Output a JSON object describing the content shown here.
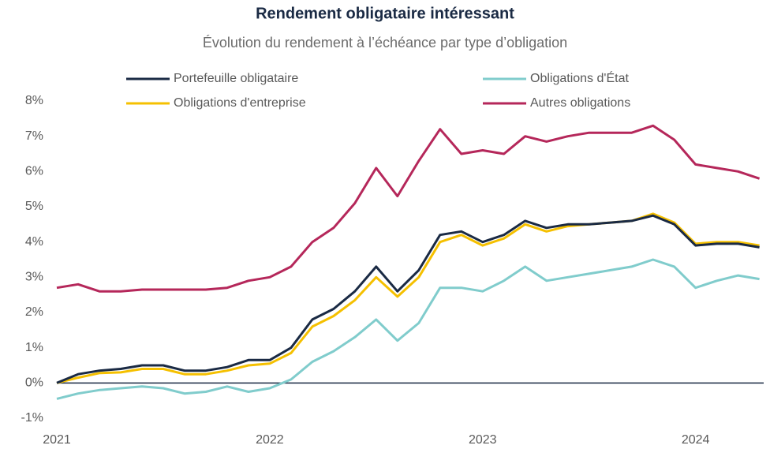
{
  "chart_data": {
    "type": "line",
    "title": "Rendement obligataire intéressant",
    "subtitle": "Évolution du rendement à l’échéance par type d’obligation",
    "x": [
      2021.0,
      2021.1,
      2021.2,
      2021.3,
      2021.4,
      2021.5,
      2021.6,
      2021.7,
      2021.8,
      2021.9,
      2022.0,
      2022.1,
      2022.2,
      2022.3,
      2022.4,
      2022.5,
      2022.6,
      2022.7,
      2022.8,
      2022.9,
      2023.0,
      2023.1,
      2023.2,
      2023.3,
      2023.4,
      2023.5,
      2023.6,
      2023.7,
      2023.8,
      2023.9,
      2024.0,
      2024.1,
      2024.2,
      2024.3
    ],
    "series": [
      {
        "name": "Portefeuille obligataire",
        "color": "#1a2a44",
        "values": [
          0.0,
          0.25,
          0.35,
          0.4,
          0.5,
          0.5,
          0.35,
          0.35,
          0.45,
          0.65,
          0.65,
          1.0,
          1.8,
          2.1,
          2.6,
          3.3,
          2.6,
          3.2,
          4.2,
          4.3,
          4.0,
          4.2,
          4.6,
          4.4,
          4.5,
          4.5,
          4.55,
          4.6,
          4.75,
          4.5,
          3.9,
          3.95,
          3.95,
          3.85
        ]
      },
      {
        "name": "Obligations d'État",
        "color": "#80cccc",
        "values": [
          -0.45,
          -0.3,
          -0.2,
          -0.15,
          -0.1,
          -0.15,
          -0.3,
          -0.25,
          -0.1,
          -0.25,
          -0.15,
          0.1,
          0.6,
          0.9,
          1.3,
          1.8,
          1.2,
          1.7,
          2.7,
          2.7,
          2.6,
          2.9,
          3.3,
          2.9,
          3.0,
          3.1,
          3.2,
          3.3,
          3.5,
          3.3,
          2.7,
          2.9,
          3.05,
          2.95
        ]
      },
      {
        "name": "Obligations d'entreprise",
        "color": "#f5c000",
        "values": [
          0.0,
          0.15,
          0.28,
          0.3,
          0.4,
          0.4,
          0.25,
          0.25,
          0.35,
          0.5,
          0.55,
          0.85,
          1.6,
          1.9,
          2.35,
          3.0,
          2.45,
          3.0,
          4.0,
          4.2,
          3.9,
          4.1,
          4.5,
          4.3,
          4.45,
          4.5,
          4.55,
          4.6,
          4.8,
          4.55,
          3.95,
          4.0,
          4.0,
          3.9
        ]
      },
      {
        "name": "Autres obligations",
        "color": "#b5275a",
        "values": [
          2.7,
          2.8,
          2.6,
          2.6,
          2.65,
          2.65,
          2.65,
          2.65,
          2.7,
          2.9,
          3.0,
          3.3,
          4.0,
          4.4,
          5.1,
          6.1,
          5.3,
          6.3,
          7.2,
          6.5,
          6.6,
          6.5,
          7.0,
          6.85,
          7.0,
          7.1,
          7.1,
          7.1,
          7.3,
          6.9,
          6.2,
          6.1,
          6.0,
          5.8
        ]
      }
    ],
    "xlim": [
      2021,
      2024.32
    ],
    "xticks": [
      2021,
      2022,
      2023,
      2024
    ],
    "ylim": [
      -1,
      8
    ],
    "yticks": [
      {
        "value": -1,
        "label": "-1%"
      },
      {
        "value": 0,
        "label": "0%"
      },
      {
        "value": 1,
        "label": "1%"
      },
      {
        "value": 2,
        "label": "2%"
      },
      {
        "value": 3,
        "label": "3%"
      },
      {
        "value": 4,
        "label": "4%"
      },
      {
        "value": 5,
        "label": "5%"
      },
      {
        "value": 6,
        "label": "6%"
      },
      {
        "value": 7,
        "label": "7%"
      },
      {
        "value": 8,
        "label": "8%"
      }
    ],
    "grid": false,
    "legend": "top"
  }
}
